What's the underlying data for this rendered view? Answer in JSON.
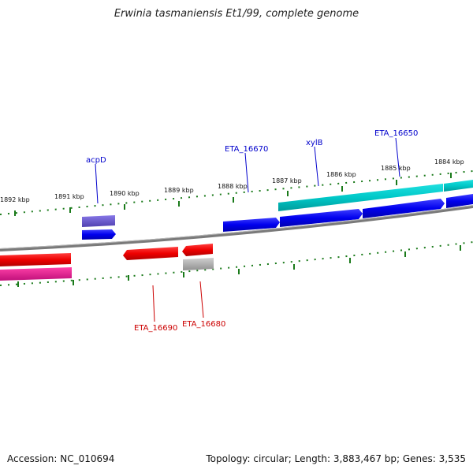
{
  "title": "Erwinia tasmaniensis Et1/99, complete genome",
  "footer": {
    "accession": "Accession: NC_010694",
    "summary": "Topology: circular; Length: 3,883,467 bp; Genes: 3,535"
  },
  "ticks": [
    {
      "label": "1892 kbp"
    },
    {
      "label": "1891 kbp"
    },
    {
      "label": "1890 kbp"
    },
    {
      "label": "1889 kbp"
    },
    {
      "label": "1888 kbp"
    },
    {
      "label": "1887 kbp"
    },
    {
      "label": "1886 kbp"
    },
    {
      "label": "1885 kbp"
    },
    {
      "label": "1884 kbp"
    }
  ],
  "gene_labels": [
    {
      "name": "acpD",
      "color": "#0000cc"
    },
    {
      "name": "ETA_16670",
      "color": "#0000cc"
    },
    {
      "name": "xylB",
      "color": "#0000cc"
    },
    {
      "name": "ETA_16650",
      "color": "#0000cc"
    },
    {
      "name": "ETA_16690",
      "color": "#cc0000"
    },
    {
      "name": "ETA_16680",
      "color": "#cc0000"
    }
  ],
  "colors": {
    "backbone": "#808080",
    "forward_cds": "#0000ee",
    "reverse_cds": "#ee0000",
    "rna": "#00cccc",
    "violet": "#7060d0",
    "magenta": "#e0208c",
    "grey": "#b0b0b0",
    "tick": "#1a7a1a"
  }
}
